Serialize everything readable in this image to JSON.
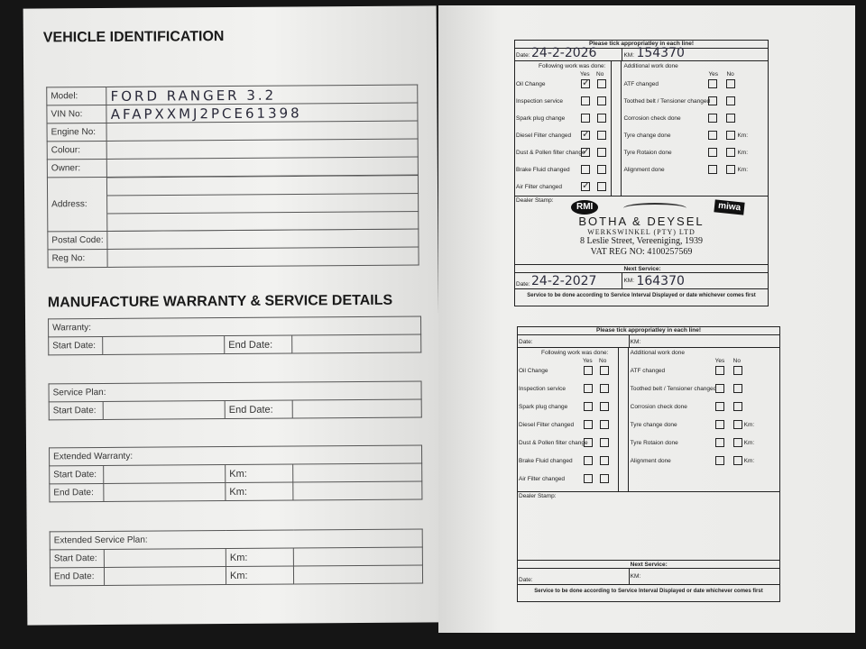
{
  "vehicle_identification": {
    "title": "VEHICLE IDENTIFICATION",
    "fields": [
      {
        "label": "Model:",
        "value": "FORD RANGER 3.2"
      },
      {
        "label": "VIN No:",
        "value": "AFAPXXMJ2PCE61398"
      },
      {
        "label": "Engine No:",
        "value": ""
      },
      {
        "label": "Colour:",
        "value": ""
      },
      {
        "label": "Owner:",
        "value": ""
      },
      {
        "label": "Address:",
        "value": ""
      },
      {
        "label": "Postal Code:",
        "value": ""
      },
      {
        "label": "Reg No:",
        "value": ""
      }
    ]
  },
  "warranty": {
    "title": "MANUFACTURE WARRANTY & SERVICE DETAILS",
    "sections": [
      {
        "header": "Warranty:",
        "rows": [
          [
            "Start Date:",
            "End Date:"
          ]
        ]
      },
      {
        "header": "Service Plan:",
        "rows": [
          [
            "Start Date:",
            "End Date:"
          ]
        ]
      },
      {
        "header": "Extended Warranty:",
        "rows": [
          [
            "Start Date:",
            "Km:"
          ],
          [
            "End Date:",
            "Km:"
          ]
        ]
      },
      {
        "header": "Extended Service Plan:",
        "rows": [
          [
            "Start Date:",
            "Km:"
          ],
          [
            "End Date:",
            "Km:"
          ]
        ]
      }
    ]
  },
  "service_forms": [
    {
      "instruction": "Please tick appropriatley in each line!",
      "date_label": "Date:",
      "date": "24-2-2026",
      "km_label": "KM:",
      "km": "154370",
      "work_title": "Following work was done:",
      "additional_title": "Additional work done",
      "yes": "Yes",
      "no": "No",
      "work": [
        {
          "label": "Oil Change",
          "yes": true
        },
        {
          "label": "Inspection service",
          "yes": false
        },
        {
          "label": "Spark plug change",
          "yes": false
        },
        {
          "label": "Diesel Filter changed",
          "yes": true
        },
        {
          "label": "Dust & Pollen filter change",
          "yes": true
        },
        {
          "label": "Brake Fluid changed",
          "yes": false
        },
        {
          "label": "Air Filter changed",
          "yes": true
        }
      ],
      "additional": [
        {
          "label": "ATF changed",
          "km": ""
        },
        {
          "label": "Toothed belt / Tensioner changed",
          "km": ""
        },
        {
          "label": "Corrosion check done",
          "km": ""
        },
        {
          "label": "Tyre change done",
          "km": "Km:"
        },
        {
          "label": "Tyre Rotaion done",
          "km": "Km:"
        },
        {
          "label": "Alignment done",
          "km": "Km:"
        }
      ],
      "stamp_label": "Dealer Stamp:",
      "stamp": {
        "logo_left": "RMI",
        "logo_right": "miwa",
        "name": "BOTHA & DEYSEL",
        "sub": "WERKSWINKEL (PTY) LTD",
        "address": "8 Leslie Street, Vereeniging, 1939",
        "vat": "VAT REG NO: 4100257569"
      },
      "next_service": "Next Service:",
      "next_date_label": "Date:",
      "next_date": "24-2-2027",
      "next_km_label": "KM:",
      "next_km": "164370",
      "footer": "Service to be done according to Service Interval Displayed or date whichever comes first"
    },
    {
      "instruction": "Please tick appropriatley in each line!",
      "date_label": "Date:",
      "date": "",
      "km_label": "KM:",
      "km": "",
      "work_title": "Following work was done:",
      "additional_title": "Additional work done",
      "yes": "Yes",
      "no": "No",
      "work": [
        {
          "label": "Oil Change",
          "yes": false
        },
        {
          "label": "Inspection service",
          "yes": false
        },
        {
          "label": "Spark plug change",
          "yes": false
        },
        {
          "label": "Diesel Filter changed",
          "yes": false
        },
        {
          "label": "Dust & Pollen filter change",
          "yes": false
        },
        {
          "label": "Brake Fluid changed",
          "yes": false
        },
        {
          "label": "Air Filter changed",
          "yes": false
        }
      ],
      "additional": [
        {
          "label": "ATF changed",
          "km": ""
        },
        {
          "label": "Toothed belt / Tensioner changed",
          "km": ""
        },
        {
          "label": "Corrosion check done",
          "km": ""
        },
        {
          "label": "Tyre change done",
          "km": "Km:"
        },
        {
          "label": "Tyre Rotaion done",
          "km": "Km:"
        },
        {
          "label": "Alignment done",
          "km": "Km:"
        }
      ],
      "stamp_label": "Dealer Stamp:",
      "next_service": "Next Service:",
      "next_date_label": "Date:",
      "next_date": "",
      "next_km_label": "KM:",
      "next_km": "",
      "footer": "Service to be done according to Service Interval Displayed or date whichever comes first"
    }
  ]
}
